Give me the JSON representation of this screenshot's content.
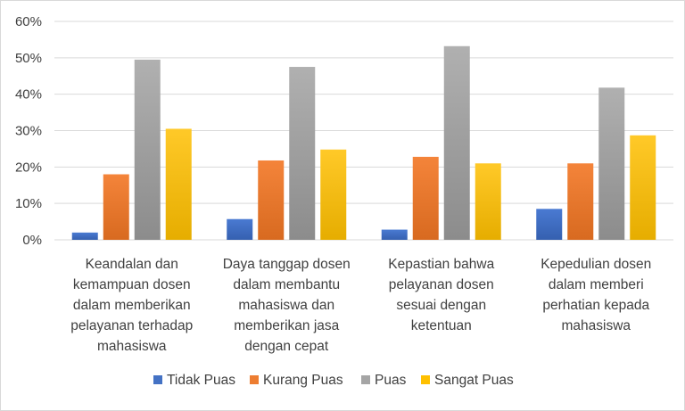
{
  "chart_data": {
    "type": "bar",
    "title": "",
    "xlabel": "",
    "ylabel": "",
    "ylim": [
      0,
      0.6
    ],
    "yticks": [
      "0%",
      "10%",
      "20%",
      "30%",
      "40%",
      "50%",
      "60%"
    ],
    "grid": true,
    "legend_position": "bottom",
    "categories": [
      [
        "Keandalan dan",
        "kemampuan dosen",
        "dalam memberikan",
        "pelayanan terhadap",
        "mahasiswa"
      ],
      [
        "Daya tanggap dosen",
        "dalam membantu",
        "mahasiswa dan",
        "memberikan jasa",
        "dengan cepat"
      ],
      [
        "Kepastian bahwa",
        "pelayanan dosen",
        "sesuai dengan",
        "ketentuan"
      ],
      [
        "Kepedulian dosen",
        "dalam memberi",
        "perhatian kepada",
        "mahasiswa"
      ]
    ],
    "series": [
      {
        "name": "Tidak Puas",
        "color": "#4472c4",
        "values": [
          0.02,
          0.057,
          0.028,
          0.085
        ]
      },
      {
        "name": "Kurang Puas",
        "color": "#ed7d31",
        "values": [
          0.18,
          0.218,
          0.228,
          0.21
        ]
      },
      {
        "name": "Puas",
        "color": "#a5a5a5",
        "values": [
          0.495,
          0.475,
          0.532,
          0.418
        ]
      },
      {
        "name": "Sangat Puas",
        "color": "#ffc000",
        "values": [
          0.305,
          0.248,
          0.21,
          0.287
        ]
      }
    ]
  }
}
